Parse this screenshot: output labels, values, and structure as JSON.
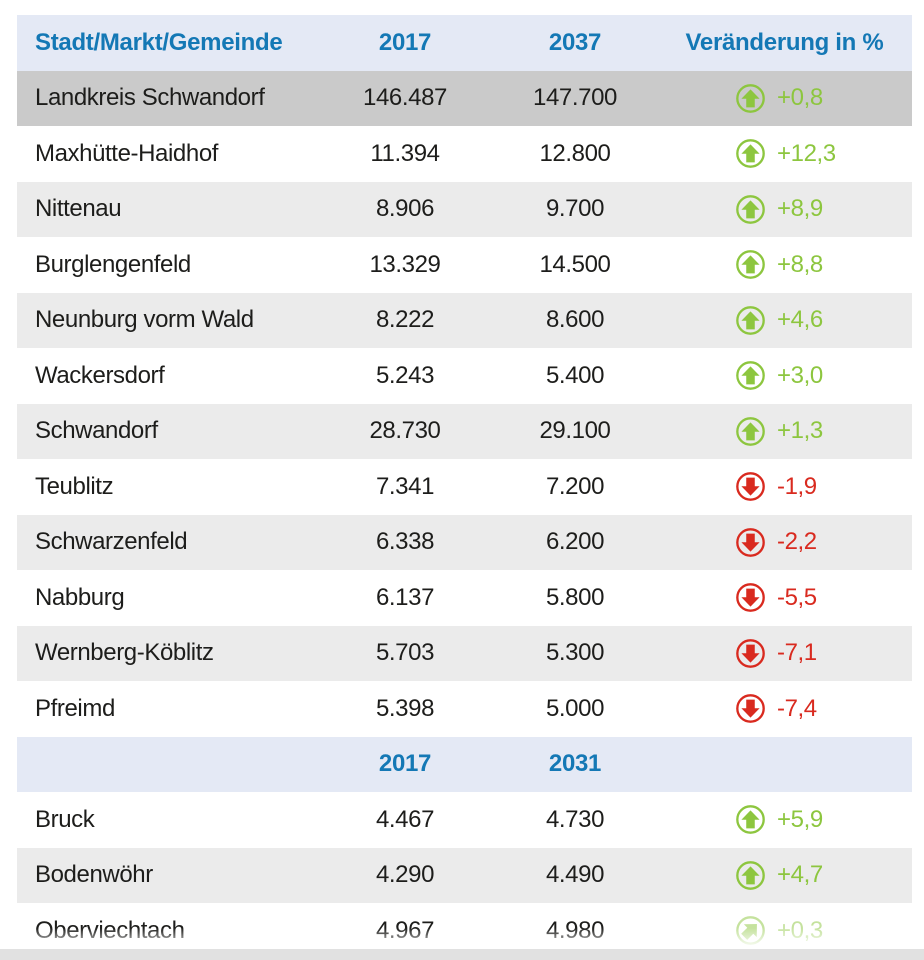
{
  "colors": {
    "accent_blue": "#1478b5",
    "green": "#8dc63f",
    "red": "#d92a1f",
    "text": "#1d1d1b",
    "header_bg": "#e4e9f5",
    "highlight_row_bg": "#cacaca",
    "alt_row_bg": "#ebebeb",
    "bottom_strip": "#e1e1e1"
  },
  "table": {
    "header": {
      "name": "Stadt/Markt/Gemeinde",
      "year_from": "2017",
      "year_to": "2037",
      "change": "Veränderung in %"
    },
    "rows": [
      {
        "name": "Landkreis Schwandorf",
        "v2017": "146.487",
        "vfuture": "147.700",
        "change": "+0,8",
        "trend": "up",
        "bg": "dark"
      },
      {
        "name": "Maxhütte-Haidhof",
        "v2017": "11.394",
        "vfuture": "12.800",
        "change": "+12,3",
        "trend": "up",
        "bg": "white"
      },
      {
        "name": "Nittenau",
        "v2017": "8.906",
        "vfuture": "9.700",
        "change": "+8,9",
        "trend": "up",
        "bg": "light"
      },
      {
        "name": "Burglengenfeld",
        "v2017": "13.329",
        "vfuture": "14.500",
        "change": "+8,8",
        "trend": "up",
        "bg": "white"
      },
      {
        "name": "Neunburg vorm Wald",
        "v2017": "8.222",
        "vfuture": "8.600",
        "change": "+4,6",
        "trend": "up",
        "bg": "light"
      },
      {
        "name": "Wackersdorf",
        "v2017": "5.243",
        "vfuture": "5.400",
        "change": "+3,0",
        "trend": "up",
        "bg": "white"
      },
      {
        "name": "Schwandorf",
        "v2017": "28.730",
        "vfuture": "29.100",
        "change": "+1,3",
        "trend": "up",
        "bg": "light"
      },
      {
        "name": "Teublitz",
        "v2017": "7.341",
        "vfuture": "7.200",
        "change": "-1,9",
        "trend": "down",
        "bg": "white"
      },
      {
        "name": "Schwarzenfeld",
        "v2017": "6.338",
        "vfuture": "6.200",
        "change": "-2,2",
        "trend": "down",
        "bg": "light"
      },
      {
        "name": "Nabburg",
        "v2017": "6.137",
        "vfuture": "5.800",
        "change": "-5,5",
        "trend": "down",
        "bg": "white"
      },
      {
        "name": "Wernberg-Köblitz",
        "v2017": "5.703",
        "vfuture": "5.300",
        "change": "-7,1",
        "trend": "down",
        "bg": "light"
      },
      {
        "name": "Pfreimd",
        "v2017": "5.398",
        "vfuture": "5.000",
        "change": "-7,4",
        "trend": "down",
        "bg": "white"
      },
      {
        "type": "subheader",
        "year_from": "2017",
        "year_to": "2031"
      },
      {
        "name": "Bruck",
        "v2017": "4.467",
        "vfuture": "4.730",
        "change": "+5,9",
        "trend": "up",
        "bg": "white"
      },
      {
        "name": "Bodenwöhr",
        "v2017": "4.290",
        "vfuture": "4.490",
        "change": "+4,7",
        "trend": "up",
        "bg": "light"
      },
      {
        "name": "Oberviechtach",
        "v2017": "4.967",
        "vfuture": "4.980",
        "change": "+0,3",
        "trend": "up-slight",
        "bg": "white",
        "faded": true
      }
    ]
  },
  "chart_data": {
    "type": "table",
    "columns": [
      "Stadt/Markt/Gemeinde",
      "2017",
      "2037",
      "Veränderung in %"
    ],
    "rows": [
      [
        "Landkreis Schwandorf",
        146487,
        147700,
        0.8
      ],
      [
        "Maxhütte-Haidhof",
        11394,
        12800,
        12.3
      ],
      [
        "Nittenau",
        8906,
        9700,
        8.9
      ],
      [
        "Burglengenfeld",
        13329,
        14500,
        8.8
      ],
      [
        "Neunburg vorm Wald",
        8222,
        8600,
        4.6
      ],
      [
        "Wackersdorf",
        5243,
        5400,
        3.0
      ],
      [
        "Schwandorf",
        28730,
        29100,
        1.3
      ],
      [
        "Teublitz",
        7341,
        7200,
        -1.9
      ],
      [
        "Schwarzenfeld",
        6338,
        6200,
        -2.2
      ],
      [
        "Nabburg",
        6137,
        5800,
        -5.5
      ],
      [
        "Wernberg-Köblitz",
        5703,
        5300,
        -7.1
      ],
      [
        "Pfreimd",
        5398,
        5000,
        -7.4
      ]
    ],
    "second_section": {
      "columns": [
        "Stadt/Markt/Gemeinde",
        "2017",
        "2031",
        "Veränderung in %"
      ],
      "rows": [
        [
          "Bruck",
          4467,
          4730,
          5.9
        ],
        [
          "Bodenwöhr",
          4290,
          4490,
          4.7
        ],
        [
          "Oberviechtach",
          4967,
          4980,
          0.3
        ]
      ]
    }
  }
}
